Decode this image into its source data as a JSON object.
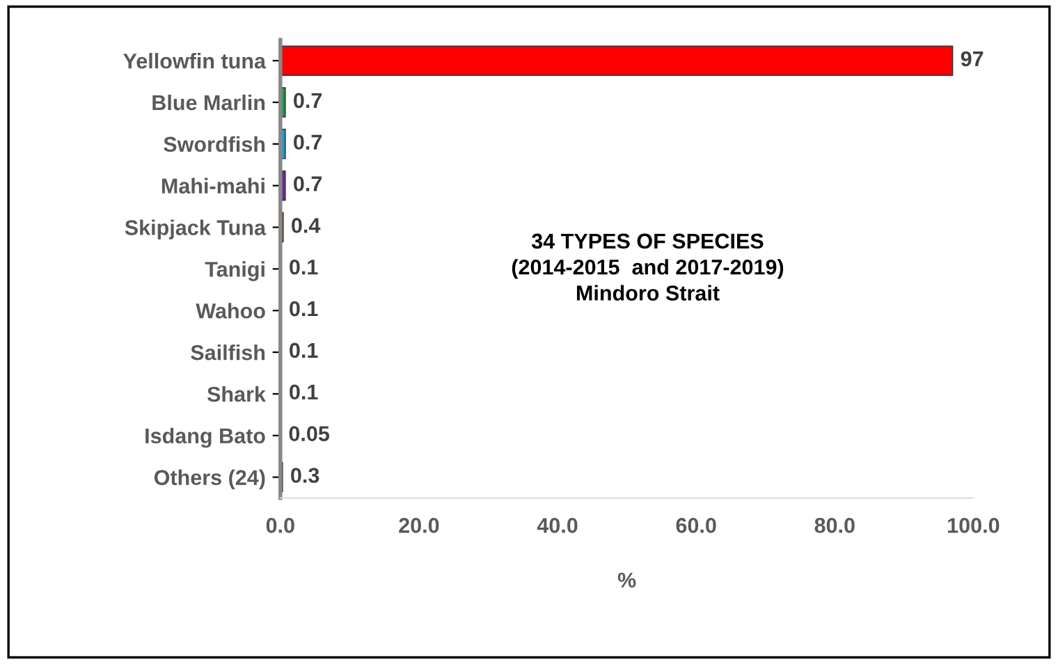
{
  "chart_data": {
    "type": "bar",
    "orientation": "horizontal",
    "xlabel": "%",
    "categories": [
      "Yellowfin tuna",
      "Blue Marlin",
      "Swordfish",
      "Mahi-mahi",
      "Skipjack Tuna",
      "Tanigi",
      "Wahoo",
      "Sailfish",
      "Shark",
      "Isdang Bato",
      "Others (24)"
    ],
    "values": [
      97,
      0.7,
      0.7,
      0.7,
      0.4,
      0.1,
      0.1,
      0.1,
      0.1,
      0.05,
      0.3
    ],
    "colors": [
      "#ff0000",
      "#1a9a4a",
      "#1aa0d8",
      "#6a2aa0",
      "#d06a20",
      "#1a9040",
      "#3a5aa8",
      "#e0a800",
      "#a00010",
      "#6a5010",
      "#102a60"
    ],
    "xlim": [
      0,
      100
    ],
    "xticks": [
      {
        "value": 0,
        "label": "0.0"
      },
      {
        "value": 20,
        "label": "20.0"
      },
      {
        "value": 40,
        "label": "40.0"
      },
      {
        "value": 60,
        "label": "60.0"
      },
      {
        "value": 80,
        "label": "80.0"
      },
      {
        "value": 100,
        "label": "100.0"
      }
    ],
    "data_labels": true,
    "grid": false,
    "legend": false,
    "annotations": [
      "34 TYPES OF SPECIES\n(2014-2015  and 2017-2019)\nMindoro Strait"
    ]
  }
}
